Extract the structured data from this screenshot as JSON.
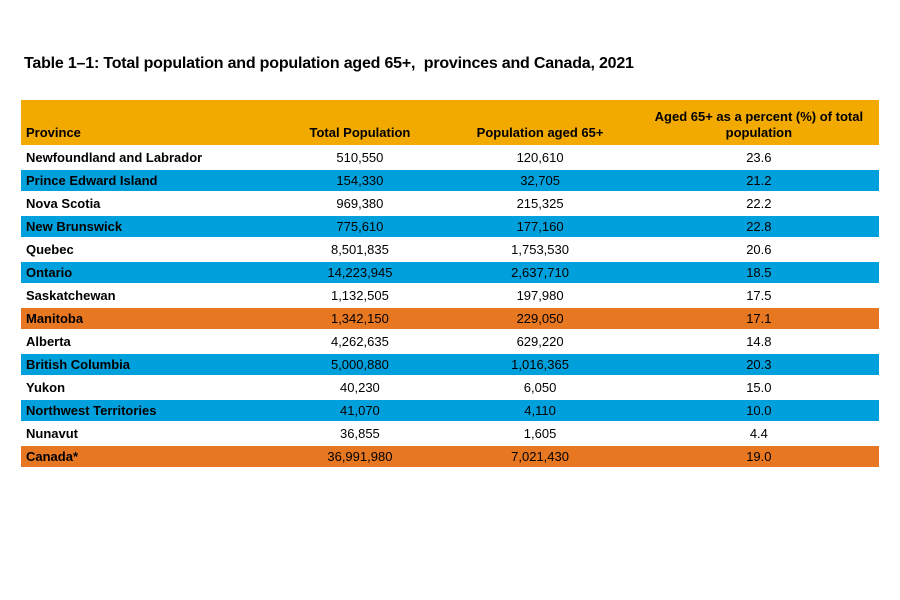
{
  "page": {
    "title": "Table 1–1: Total population and population aged 65+,  provinces and Canada, 2021"
  },
  "table": {
    "columns": [
      "Province",
      "Total Population",
      "Population aged 65+",
      "Aged 65+ as a percent (%) of total population"
    ],
    "rows": [
      {
        "cells": [
          "Newfoundland and Labrador",
          "510,550",
          "120,610",
          "23.6"
        ],
        "highlight": "none"
      },
      {
        "cells": [
          "Prince Edward Island",
          "154,330",
          "32,705",
          "21.2"
        ],
        "highlight": "blue"
      },
      {
        "cells": [
          "Nova Scotia",
          "969,380",
          "215,325",
          "22.2"
        ],
        "highlight": "none"
      },
      {
        "cells": [
          "New Brunswick",
          "775,610",
          "177,160",
          "22.8"
        ],
        "highlight": "blue"
      },
      {
        "cells": [
          "Quebec",
          "8,501,835",
          "1,753,530",
          "20.6"
        ],
        "highlight": "none"
      },
      {
        "cells": [
          "Ontario",
          "14,223,945",
          "2,637,710",
          "18.5"
        ],
        "highlight": "blue"
      },
      {
        "cells": [
          "Saskatchewan",
          "1,132,505",
          "197,980",
          "17.5"
        ],
        "highlight": "none"
      },
      {
        "cells": [
          "Manitoba",
          "1,342,150",
          "229,050",
          "17.1"
        ],
        "highlight": "orange"
      },
      {
        "cells": [
          "Alberta",
          "4,262,635",
          "629,220",
          "14.8"
        ],
        "highlight": "none"
      },
      {
        "cells": [
          "British Columbia",
          "5,000,880",
          "1,016,365",
          "20.3"
        ],
        "highlight": "blue"
      },
      {
        "cells": [
          "Yukon",
          "40,230",
          "6,050",
          "15.0"
        ],
        "highlight": "none"
      },
      {
        "cells": [
          "Northwest Territories",
          "41,070",
          "4,110",
          "10.0"
        ],
        "highlight": "blue"
      },
      {
        "cells": [
          "Nunavut",
          "36,855",
          "1,605",
          "4.4"
        ],
        "highlight": "none"
      },
      {
        "cells": [
          "Canada*",
          "36,991,980",
          "7,021,430",
          "19.0"
        ],
        "highlight": "orange"
      }
    ]
  },
  "colors": {
    "header_background": "#F2A900",
    "row_highlight_blue": "#00A0DC",
    "row_highlight_orange": "#E87722",
    "row_plain": "#FFFFFF",
    "text": "#000000",
    "row_separator": "#FFFFFF"
  },
  "chart_data": {
    "type": "table",
    "title": "Table 1–1: Total population and population aged 65+, provinces and Canada, 2021",
    "columns": [
      "Province",
      "Total Population",
      "Population aged 65+",
      "Aged 65+ as a percent (%) of total population"
    ],
    "rows": [
      [
        "Newfoundland and Labrador",
        510550,
        120610,
        23.6
      ],
      [
        "Prince Edward Island",
        154330,
        32705,
        21.2
      ],
      [
        "Nova Scotia",
        969380,
        215325,
        22.2
      ],
      [
        "New Brunswick",
        775610,
        177160,
        22.8
      ],
      [
        "Quebec",
        8501835,
        1753530,
        20.6
      ],
      [
        "Ontario",
        14223945,
        2637710,
        18.5
      ],
      [
        "Saskatchewan",
        1132505,
        197980,
        17.5
      ],
      [
        "Manitoba",
        1342150,
        229050,
        17.1
      ],
      [
        "Alberta",
        4262635,
        629220,
        14.8
      ],
      [
        "British Columbia",
        5000880,
        1016365,
        20.3
      ],
      [
        "Yukon",
        40230,
        6050,
        15.0
      ],
      [
        "Northwest Territories",
        41070,
        4110,
        10.0
      ],
      [
        "Nunavut",
        36855,
        1605,
        4.4
      ],
      [
        "Canada*",
        36991980,
        7021430,
        19.0
      ]
    ],
    "highlighted_rows": {
      "blue": [
        "Prince Edward Island",
        "New Brunswick",
        "Ontario",
        "British Columbia",
        "Northwest Territories"
      ],
      "orange": [
        "Manitoba",
        "Canada*"
      ]
    },
    "layout": {
      "header_align": "center",
      "province_align": "left",
      "value_align": "center"
    }
  }
}
